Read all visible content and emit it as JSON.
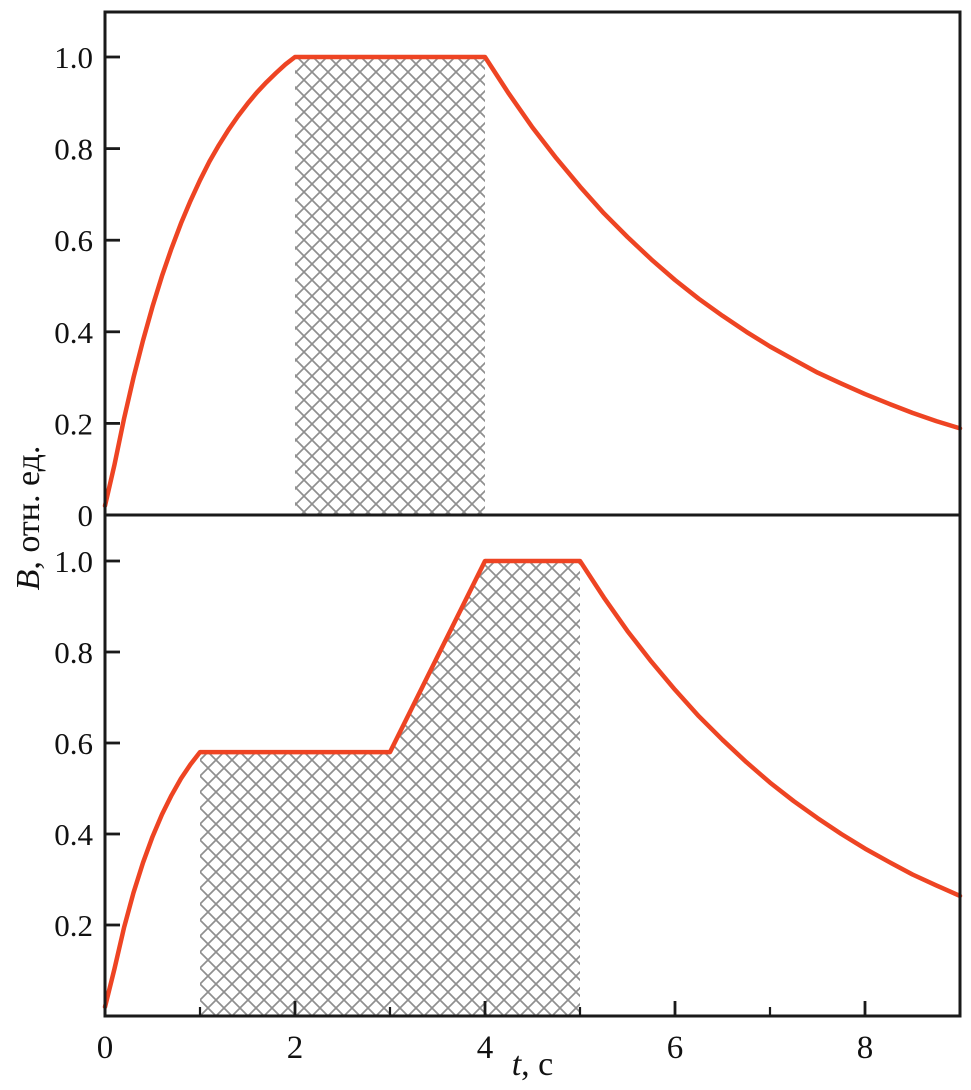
{
  "page": {
    "background": "#ffffff"
  },
  "chart_style": {
    "accent": "#ee4423",
    "hatch_color": "#8f8f8f",
    "frame_color": "#1a1a1a",
    "tick_label_color": "#111111"
  },
  "axes": {
    "xlabel_var": "t",
    "xlabel_rest": ", с",
    "ylabel_var": "B",
    "ylabel_rest": ", отн. ед."
  },
  "chart_data": [
    {
      "type": "area",
      "name": "top",
      "title": "",
      "xlabel": "t, с",
      "ylabel": "B, отн. ед.",
      "xlim": [
        0,
        9
      ],
      "ylim": [
        0,
        1.1
      ],
      "grid": false,
      "legend": "none",
      "x_ticks": [
        0,
        2,
        4,
        6,
        8
      ],
      "x_tick_labels": [
        "0",
        "2",
        "4",
        "6",
        "8"
      ],
      "x_minor_ticks": [
        1,
        3,
        5,
        7
      ],
      "y_ticks": [
        0,
        0.2,
        0.4,
        0.6,
        0.8,
        1.0
      ],
      "y_tick_labels": [
        "0",
        "0.2",
        "0.4",
        "0.6",
        "0.8",
        "1.0"
      ],
      "curve": [
        [
          0,
          0.02
        ],
        [
          0.1,
          0.11
        ],
        [
          0.2,
          0.21
        ],
        [
          0.3,
          0.3
        ],
        [
          0.4,
          0.381
        ],
        [
          0.5,
          0.455
        ],
        [
          0.6,
          0.522
        ],
        [
          0.7,
          0.582
        ],
        [
          0.8,
          0.637
        ],
        [
          0.9,
          0.686
        ],
        [
          1,
          0.731
        ],
        [
          1.1,
          0.772
        ],
        [
          1.2,
          0.808
        ],
        [
          1.3,
          0.841
        ],
        [
          1.4,
          0.871
        ],
        [
          1.5,
          0.898
        ],
        [
          1.6,
          0.923
        ],
        [
          1.7,
          0.945
        ],
        [
          1.8,
          0.965
        ],
        [
          1.9,
          0.984
        ],
        [
          2,
          1
        ],
        [
          4,
          1
        ],
        [
          4.25,
          0.92
        ],
        [
          4.5,
          0.846
        ],
        [
          4.75,
          0.779
        ],
        [
          5,
          0.717
        ],
        [
          5.25,
          0.659
        ],
        [
          5.5,
          0.607
        ],
        [
          5.75,
          0.558
        ],
        [
          6,
          0.513
        ],
        [
          6.25,
          0.472
        ],
        [
          6.5,
          0.435
        ],
        [
          6.75,
          0.4
        ],
        [
          7,
          0.368
        ],
        [
          7.25,
          0.339
        ],
        [
          7.5,
          0.311
        ],
        [
          7.75,
          0.287
        ],
        [
          8,
          0.264
        ],
        [
          8.25,
          0.243
        ],
        [
          8.5,
          0.223
        ],
        [
          8.75,
          0.205
        ],
        [
          9,
          0.189
        ]
      ],
      "hatch_polygon": [
        [
          2,
          0
        ],
        [
          2,
          1
        ],
        [
          4,
          1
        ],
        [
          4,
          0
        ]
      ]
    },
    {
      "type": "area",
      "name": "bottom",
      "title": "",
      "xlabel": "t, с",
      "ylabel": "B, отн. ед.",
      "xlim": [
        0,
        9
      ],
      "ylim": [
        0,
        1.1
      ],
      "grid": false,
      "legend": "none",
      "x_ticks": [
        0,
        2,
        4,
        6,
        8
      ],
      "x_tick_labels": [
        "0",
        "2",
        "4",
        "6",
        "8"
      ],
      "x_minor_ticks": [
        1,
        3,
        5,
        7
      ],
      "y_ticks": [
        0,
        0.2,
        0.4,
        0.6,
        0.8,
        1.0
      ],
      "y_tick_labels": [
        "",
        "0.2",
        "0.4",
        "0.6",
        "0.8",
        "1.0"
      ],
      "curve": [
        [
          0,
          0.02
        ],
        [
          0.1,
          0.104
        ],
        [
          0.2,
          0.194
        ],
        [
          0.3,
          0.271
        ],
        [
          0.4,
          0.337
        ],
        [
          0.5,
          0.394
        ],
        [
          0.6,
          0.443
        ],
        [
          0.7,
          0.485
        ],
        [
          0.8,
          0.522
        ],
        [
          0.9,
          0.553
        ],
        [
          1,
          0.58
        ],
        [
          3,
          0.58
        ],
        [
          3.25,
          0.685
        ],
        [
          3.5,
          0.79
        ],
        [
          3.75,
          0.895
        ],
        [
          4,
          1
        ],
        [
          5,
          1
        ],
        [
          5.25,
          0.92
        ],
        [
          5.5,
          0.846
        ],
        [
          5.75,
          0.779
        ],
        [
          6,
          0.717
        ],
        [
          6.25,
          0.659
        ],
        [
          6.5,
          0.607
        ],
        [
          6.75,
          0.558
        ],
        [
          7,
          0.513
        ],
        [
          7.25,
          0.472
        ],
        [
          7.5,
          0.435
        ],
        [
          7.75,
          0.4
        ],
        [
          8,
          0.368
        ],
        [
          8.25,
          0.339
        ],
        [
          8.5,
          0.311
        ],
        [
          8.75,
          0.287
        ],
        [
          9,
          0.264
        ]
      ],
      "hatch_polygon": [
        [
          1,
          0
        ],
        [
          1,
          0.58
        ],
        [
          3,
          0.58
        ],
        [
          4,
          1
        ],
        [
          5,
          1
        ],
        [
          5,
          0
        ]
      ]
    }
  ]
}
